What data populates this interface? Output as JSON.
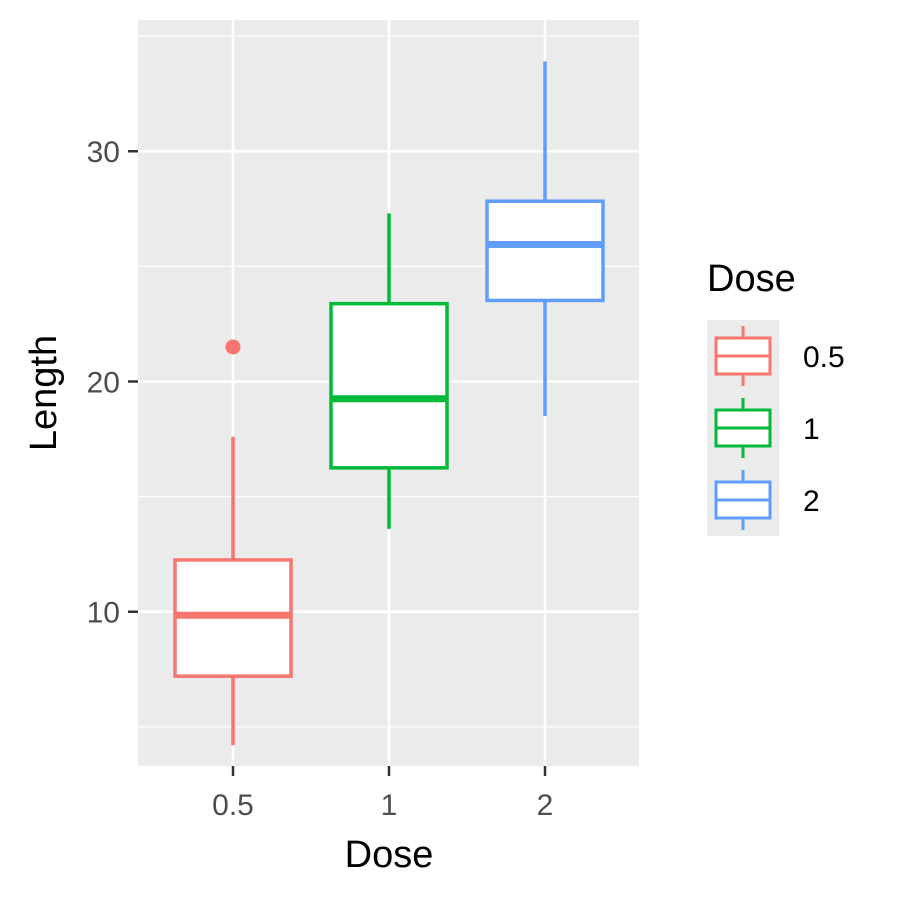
{
  "chart_data": {
    "type": "box",
    "xlabel": "Dose",
    "ylabel": "Length",
    "ylim": [
      3.3,
      35.7
    ],
    "y_major_ticks": [
      10,
      20,
      30
    ],
    "y_minor_ticks": [
      5,
      15,
      25,
      35
    ],
    "categories": [
      "0.5",
      "1",
      "2"
    ],
    "grid": true,
    "legend": {
      "title": "Dose",
      "placement": "right",
      "entries": [
        "0.5",
        "1",
        "2"
      ]
    },
    "series": [
      {
        "category": "0.5",
        "color": "#F8766D",
        "min": 4.2,
        "q1": 7.2,
        "median": 9.85,
        "q3": 12.25,
        "max": 17.6,
        "outliers": [
          21.5
        ]
      },
      {
        "category": "1",
        "color": "#00BA38",
        "min": 13.6,
        "q1": 16.25,
        "median": 19.25,
        "q3": 23.38,
        "max": 27.3,
        "outliers": []
      },
      {
        "category": "2",
        "color": "#619CFF",
        "min": 18.5,
        "q1": 23.52,
        "median": 25.95,
        "q3": 27.83,
        "max": 33.9,
        "outliers": []
      }
    ]
  },
  "colors": {
    "panel_background": "#EBEBEB",
    "grid": "#FFFFFF",
    "box_fill": "#FFFFFF"
  }
}
